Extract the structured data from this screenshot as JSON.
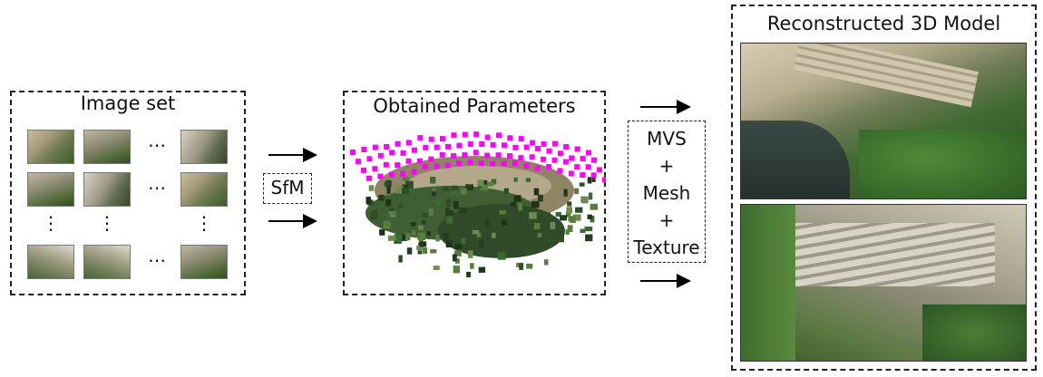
{
  "image_set": {
    "title": "Image set",
    "ellipsis_h": "⋯",
    "ellipsis_v": "⋮"
  },
  "sfm": {
    "label": "SfM"
  },
  "params": {
    "title": "Obtained Parameters",
    "camera_color": "#ff00ff"
  },
  "mvs": {
    "lines": [
      "MVS",
      "+",
      "Mesh",
      "+",
      "Texture"
    ]
  },
  "model": {
    "title": "Reconstructed 3D Model"
  }
}
